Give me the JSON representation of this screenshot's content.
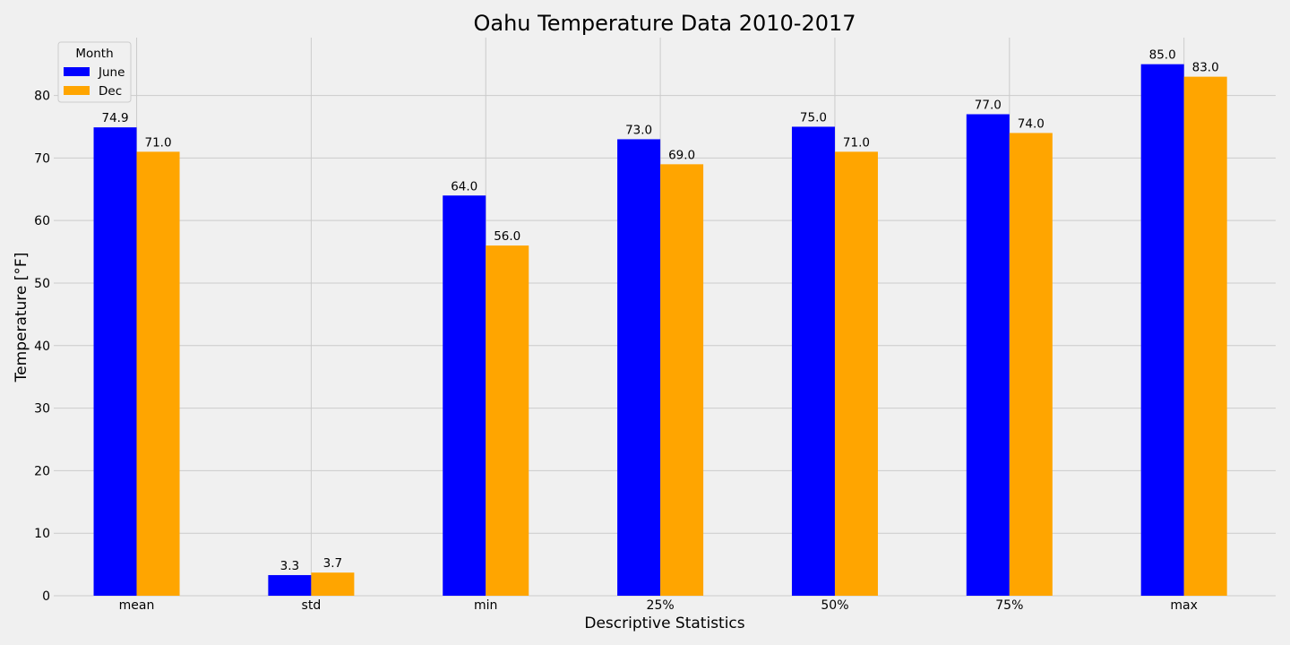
{
  "chart_data": {
    "type": "bar",
    "title": "Oahu Temperature Data 2010-2017",
    "xlabel": "Descriptive Statistics",
    "ylabel": "Temperature [°F]",
    "categories": [
      "mean",
      "std",
      "min",
      "25%",
      "50%",
      "75%",
      "max"
    ],
    "series": [
      {
        "name": "June",
        "color": "#0000ff",
        "values": [
          74.9,
          3.3,
          64.0,
          73.0,
          75.0,
          77.0,
          85.0
        ],
        "labels": [
          "74.9",
          "3.3",
          "64.0",
          "73.0",
          "75.0",
          "77.0",
          "85.0"
        ]
      },
      {
        "name": "Dec",
        "color": "#ffa500",
        "values": [
          71.0,
          3.7,
          56.0,
          69.0,
          71.0,
          74.0,
          83.0
        ],
        "labels": [
          "71.0",
          "3.7",
          "56.0",
          "69.0",
          "71.0",
          "74.0",
          "83.0"
        ]
      }
    ],
    "ylim": [
      0,
      89.25
    ],
    "yticks": [
      0,
      10,
      20,
      30,
      40,
      50,
      60,
      70,
      80
    ],
    "grid": true,
    "legend": {
      "title": "Month",
      "placement": "top-left"
    }
  }
}
